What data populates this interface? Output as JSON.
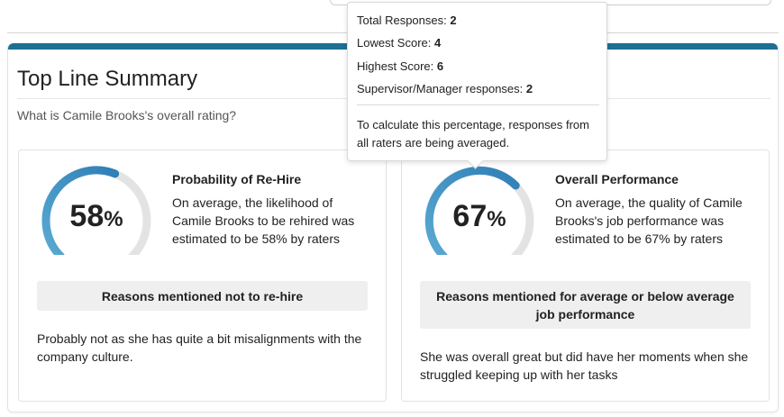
{
  "summary": {
    "title": "Top Line Summary",
    "question": "What is Camile Brooks's overall rating?"
  },
  "colors": {
    "accent_bar": "#1d6f93",
    "gauge_fill_start": "#5aaad2",
    "gauge_fill_end": "#2f7fb8",
    "gauge_track": "#e3e3e3"
  },
  "rehire": {
    "value": 58,
    "value_label": "58",
    "percent_sign": "%",
    "heading": "Probability of Re-Hire",
    "description": "On average, the likelihood of Camile Brooks to be rehired was estimated to be 58% by raters",
    "reasons_heading": "Reasons mentioned not to re-hire",
    "reason": "Probably not as she has quite a bit misalignments with the company culture."
  },
  "performance": {
    "value": 67,
    "value_label": "67",
    "percent_sign": "%",
    "heading": "Overall Performance",
    "description": "On average, the quality of Camile Brooks's job performance was estimated to be 67% by raters",
    "reasons_heading": "Reasons mentioned for average or below average job performance",
    "reason": "She was overall great but did have her moments when she struggled keeping up with her tasks"
  },
  "tooltip": {
    "total_label": "Total Responses:",
    "total_value": "2",
    "lowest_label": "Lowest Score:",
    "lowest_value": "4",
    "highest_label": "Highest Score:",
    "highest_value": "6",
    "supervisor_label": "Supervisor/Manager responses:",
    "supervisor_value": "2",
    "note": "To calculate this percentage, responses from all raters are being averaged."
  }
}
